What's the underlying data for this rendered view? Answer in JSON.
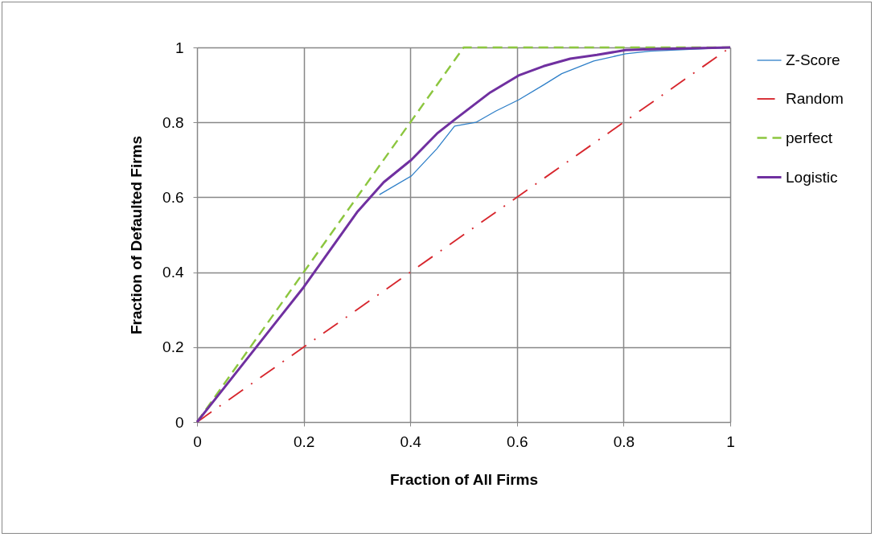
{
  "chart_data": {
    "type": "line",
    "xlabel": "Fraction of All Firms",
    "ylabel": "Fraction of Defaulted Firms",
    "xlim": [
      0,
      1
    ],
    "ylim": [
      0,
      1
    ],
    "xticks": [
      0,
      0.2,
      0.4,
      0.6,
      0.8,
      1
    ],
    "yticks": [
      0,
      0.2,
      0.4,
      0.6,
      0.8,
      1
    ],
    "grid": true,
    "legend": "right",
    "marker": "none",
    "series": [
      {
        "name": "Z-Score",
        "color": "#2e7fc8",
        "line_style": "solid",
        "x": [
          0.342,
          0.402,
          0.45,
          0.483,
          0.523,
          0.56,
          0.603,
          0.65,
          0.684,
          0.744,
          0.804,
          0.85,
          1
        ],
        "values": [
          0.607,
          0.657,
          0.73,
          0.79,
          0.8,
          0.83,
          0.86,
          0.9,
          0.93,
          0.964,
          0.983,
          0.99,
          1
        ]
      },
      {
        "name": "Random",
        "color": "#d7262d",
        "line_style": "dashdot",
        "x": [
          0,
          1
        ],
        "values": [
          0,
          1
        ]
      },
      {
        "name": "perfect",
        "color": "#8cc63f",
        "line_style": "dashed",
        "x": [
          0,
          0.5,
          1
        ],
        "values": [
          0,
          1,
          1
        ]
      },
      {
        "name": "Logistic",
        "color": "#7030a0",
        "line_style": "solid",
        "x": [
          0,
          0.05,
          0.1,
          0.15,
          0.2,
          0.25,
          0.3,
          0.35,
          0.402,
          0.45,
          0.483,
          0.55,
          0.603,
          0.65,
          0.7,
          0.75,
          0.804,
          0.85,
          1
        ],
        "values": [
          0,
          0.09,
          0.18,
          0.27,
          0.36,
          0.46,
          0.56,
          0.64,
          0.7,
          0.77,
          0.807,
          0.88,
          0.925,
          0.95,
          0.97,
          0.98,
          0.993,
          0.995,
          1
        ]
      }
    ]
  }
}
